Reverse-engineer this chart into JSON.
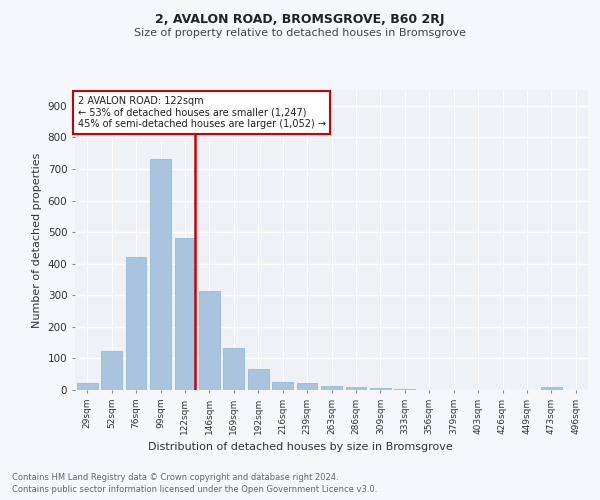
{
  "title1": "2, AVALON ROAD, BROMSGROVE, B60 2RJ",
  "title2": "Size of property relative to detached houses in Bromsgrove",
  "xlabel": "Distribution of detached houses by size in Bromsgrove",
  "ylabel": "Number of detached properties",
  "footnote1": "Contains HM Land Registry data © Crown copyright and database right 2024.",
  "footnote2": "Contains public sector information licensed under the Open Government Licence v3.0.",
  "annotation_line1": "2 AVALON ROAD: 122sqm",
  "annotation_line2": "← 53% of detached houses are smaller (1,247)",
  "annotation_line3": "45% of semi-detached houses are larger (1,052) →",
  "bar_labels": [
    "29sqm",
    "52sqm",
    "76sqm",
    "99sqm",
    "122sqm",
    "146sqm",
    "169sqm",
    "192sqm",
    "216sqm",
    "239sqm",
    "263sqm",
    "286sqm",
    "309sqm",
    "333sqm",
    "356sqm",
    "379sqm",
    "403sqm",
    "426sqm",
    "449sqm",
    "473sqm",
    "496sqm"
  ],
  "bar_values": [
    22,
    122,
    420,
    730,
    480,
    312,
    132,
    65,
    26,
    22,
    14,
    10,
    5,
    2,
    1,
    0,
    0,
    0,
    0,
    8,
    0
  ],
  "bar_color": "#aac4e0",
  "bar_edge_color": "#8ab4d4",
  "vline_index": 4,
  "vline_color": "#cc0000",
  "ylim": [
    0,
    950
  ],
  "yticks": [
    0,
    100,
    200,
    300,
    400,
    500,
    600,
    700,
    800,
    900
  ],
  "background_color": "#eef2f7",
  "grid_color": "#ffffff",
  "fig_bg_color": "#f5f7fa",
  "annotation_box_facecolor": "#ffffff",
  "annotation_box_edgecolor": "#cc0000",
  "title1_fontsize": 9,
  "title2_fontsize": 8,
  "ylabel_fontsize": 8,
  "xlabel_fontsize": 8,
  "tick_fontsize": 6.5,
  "annotation_fontsize": 7,
  "footnote_fontsize": 6
}
